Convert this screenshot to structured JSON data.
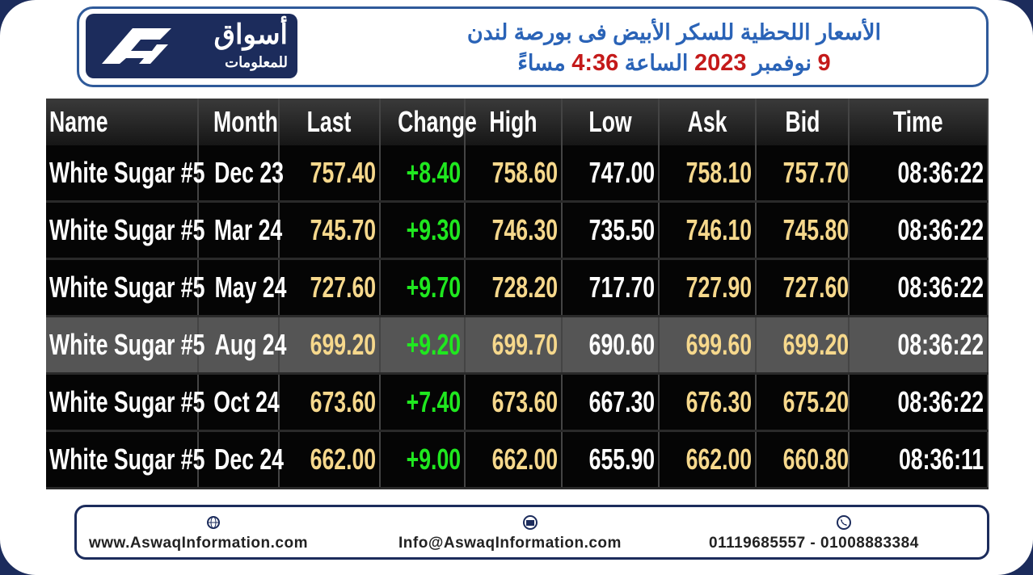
{
  "logo": {
    "name": "أسواق",
    "tagline": "للمعلومات"
  },
  "title": {
    "line1": "الأسعار اللحظية للسكر الأبيض فى بورصة لندن",
    "line2": [
      "9",
      "نوفمبر",
      "2023",
      "الساعة",
      "4:36",
      "مساءً"
    ]
  },
  "table": {
    "header": [
      "Name",
      "Month",
      "Last",
      "Change",
      "High",
      "Low",
      "Ask",
      "Bid",
      "Time"
    ],
    "rows": [
      [
        "White Sugar #5",
        "Dec 23",
        "757.40",
        "+8.40",
        "758.60",
        "747.00",
        "758.10",
        "757.70",
        "08:36:22"
      ],
      [
        "White Sugar #5",
        "Mar 24",
        "745.70",
        "+9.30",
        "746.30",
        "735.50",
        "746.10",
        "745.80",
        "08:36:22"
      ],
      [
        "White Sugar #5",
        "May 24",
        "727.60",
        "+9.70",
        "728.20",
        "717.70",
        "727.90",
        "727.60",
        "08:36:22"
      ],
      [
        "White Sugar #5",
        "Aug 24",
        "699.20",
        "+9.20",
        "699.70",
        "690.60",
        "699.60",
        "699.20",
        "08:36:22"
      ],
      [
        "White Sugar #5",
        "Oct 24",
        "673.60",
        "+7.40",
        "673.60",
        "667.30",
        "676.30",
        "675.20",
        "08:36:22"
      ],
      [
        "White Sugar #5",
        "Dec 24",
        "662.00",
        "+9.00",
        "662.00",
        "655.90",
        "662.00",
        "660.80",
        "08:36:11"
      ]
    ]
  },
  "footer": {
    "website": "www.AswaqInformation.com",
    "email": "Info@AswaqInformation.com",
    "phone": "01119685557 - 01008883384"
  }
}
